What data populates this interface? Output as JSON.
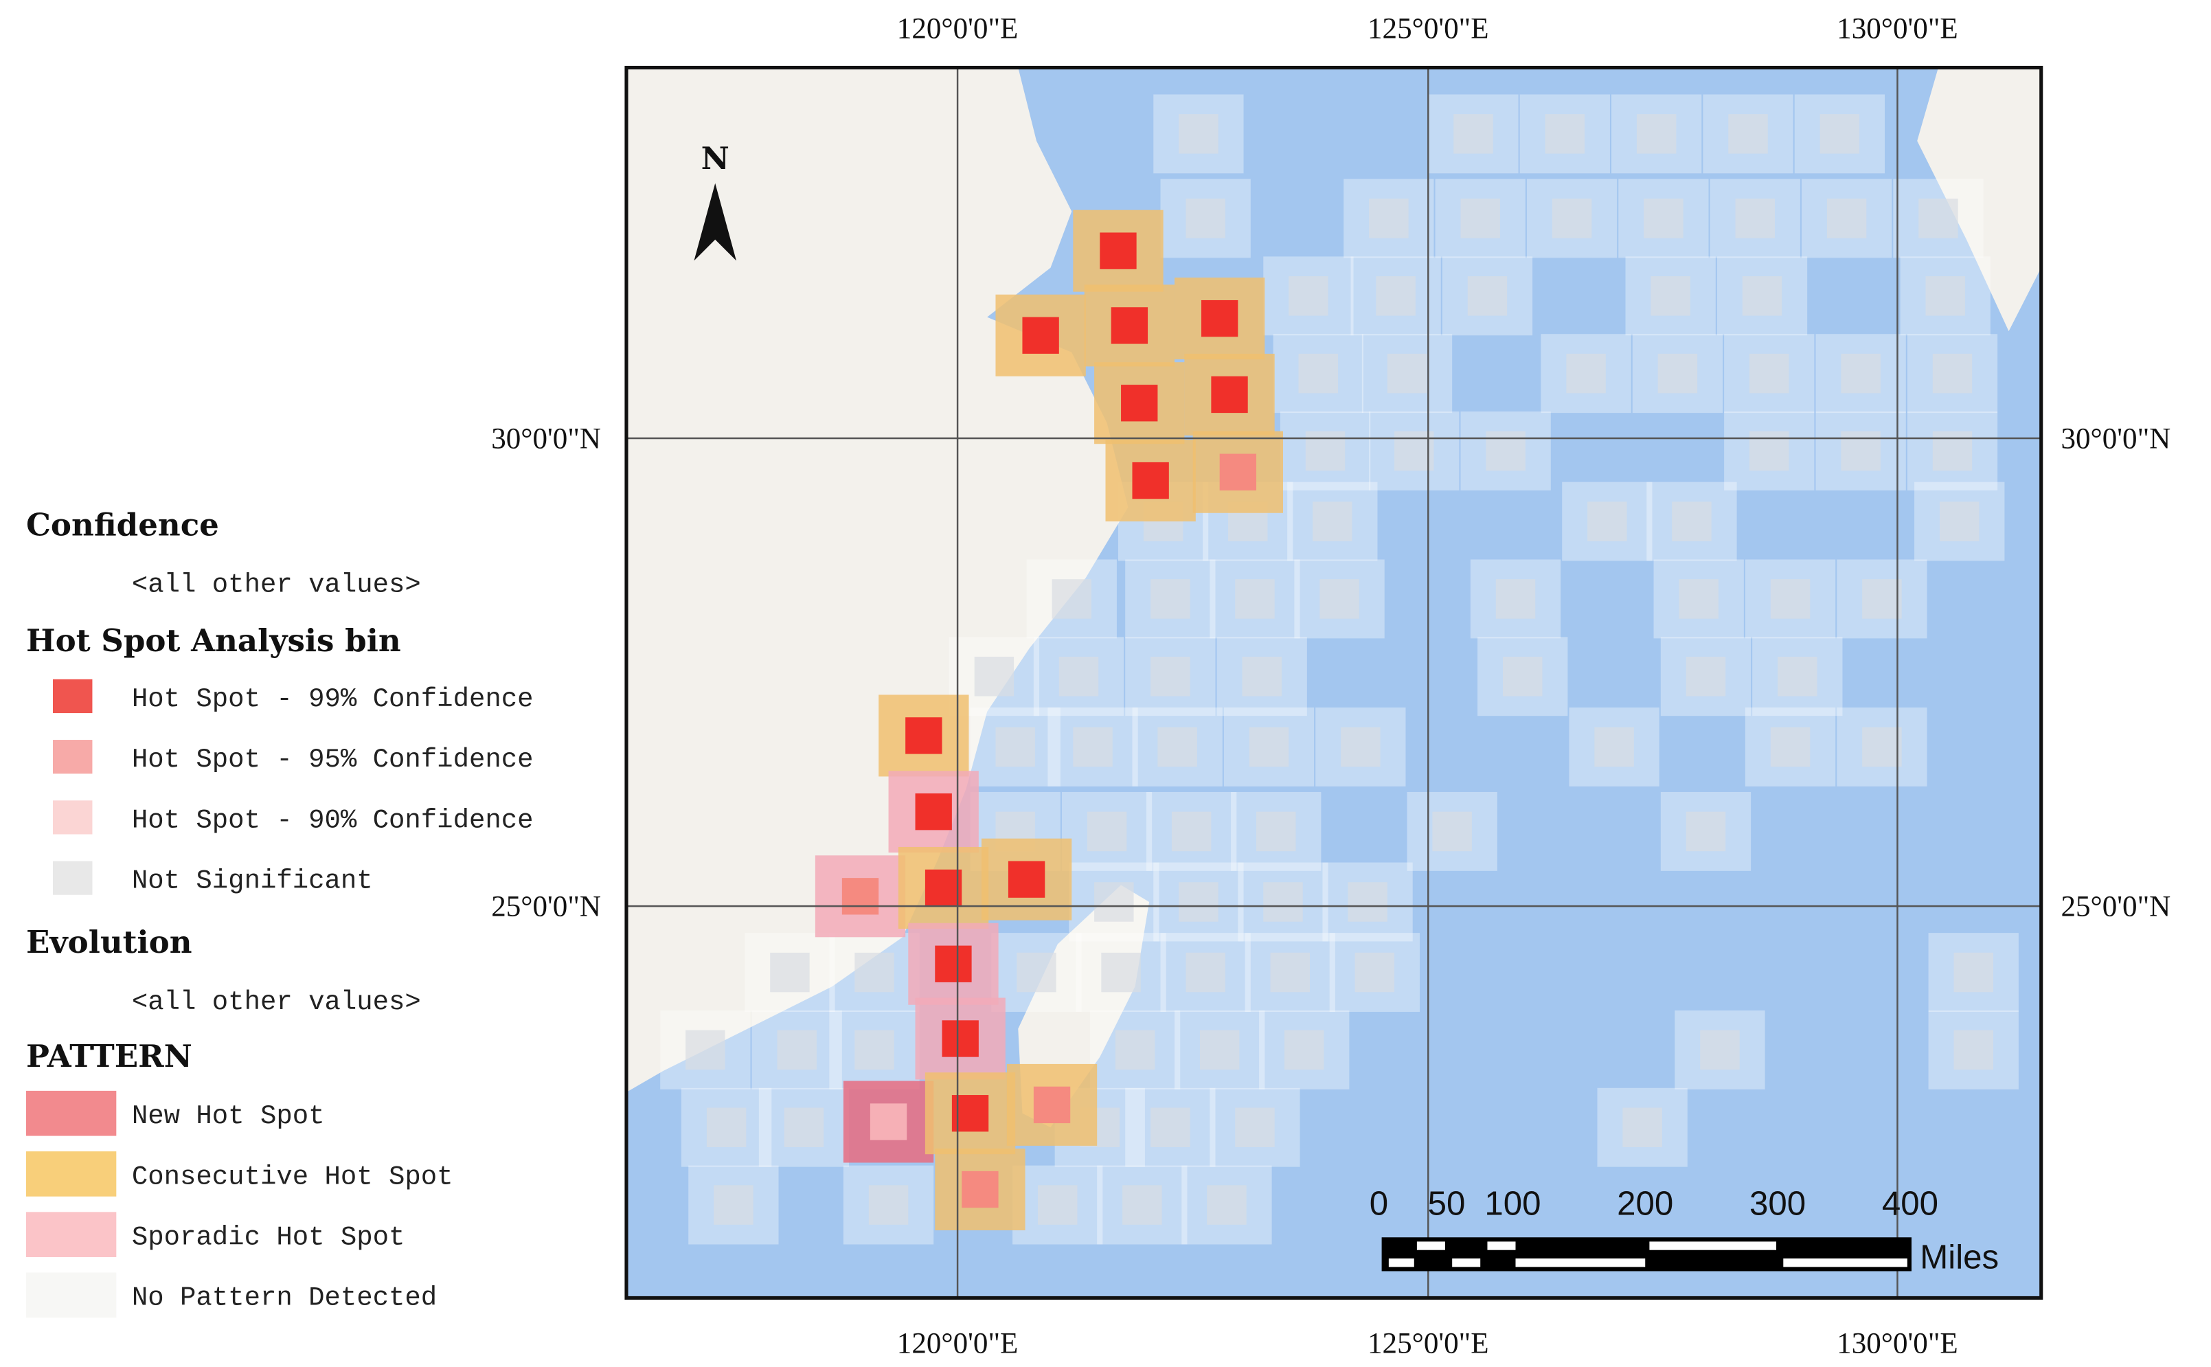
{
  "map": {
    "graticule": {
      "top": [
        "120°0'0\"E",
        "125°0'0\"E",
        "130°0'0\"E"
      ],
      "bottom": [
        "120°0'0\"E",
        "125°0'0\"E",
        "130°0'0\"E"
      ],
      "left": [
        "30°0'0\"N",
        "25°0'0\"N"
      ],
      "right": [
        "30°0'0\"N",
        "25°0'0\"N"
      ]
    },
    "north": "N",
    "scale_bar": {
      "labels": [
        0,
        50,
        100,
        200,
        300,
        400
      ],
      "unit": "Miles"
    }
  },
  "legend": {
    "confidence": {
      "title": "Confidence",
      "other": "<all other values>"
    },
    "bin": {
      "title": "Hot Spot Analysis bin",
      "items": [
        "Hot Spot - 99% Confidence",
        "Hot Spot - 95% Confidence",
        "Hot Spot - 90% Confidence",
        "Not Significant"
      ]
    },
    "evolution": {
      "title": "Evolution",
      "other": "<all other values>"
    },
    "pattern": {
      "title": "PATTERN",
      "items": [
        "New Hot Spot",
        "Consecutive Hot Spot",
        "Sporadic Hot Spot",
        "No Pattern Detected"
      ]
    }
  }
}
